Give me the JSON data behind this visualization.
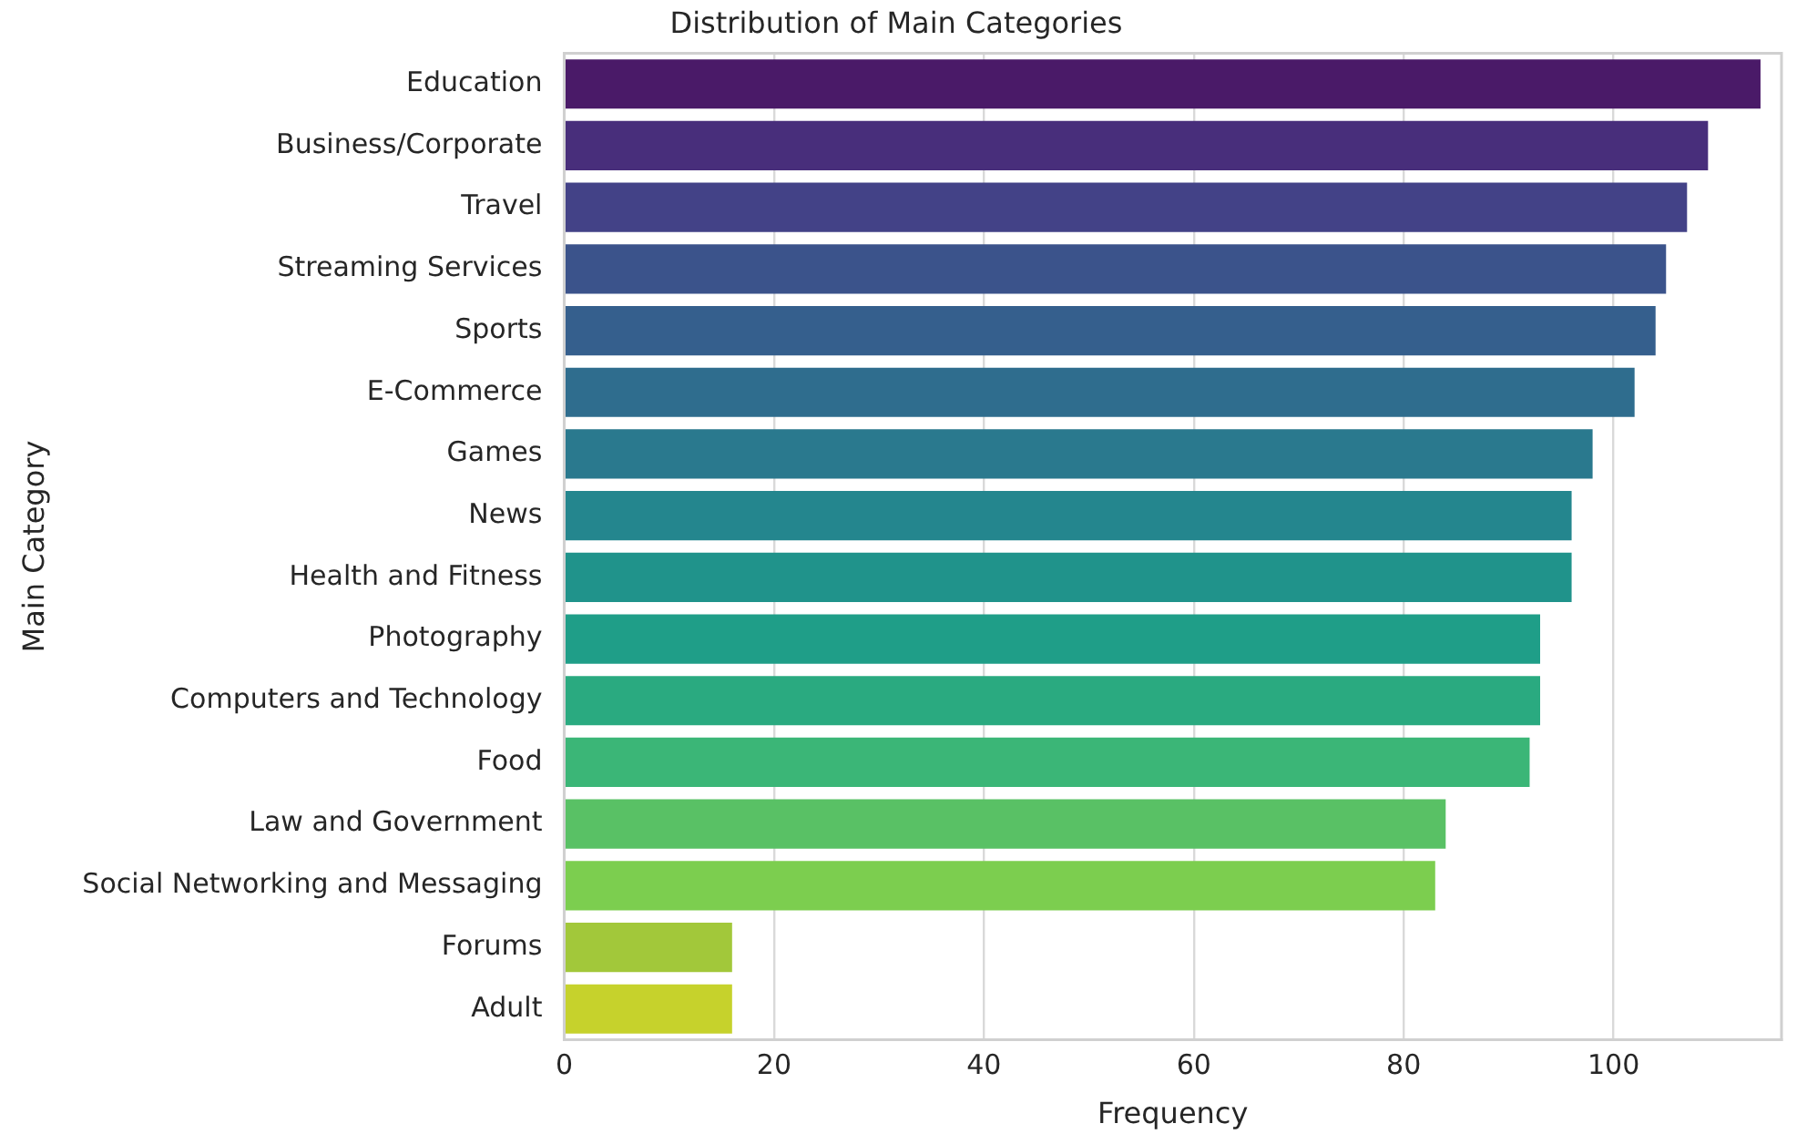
{
  "chart_data": {
    "type": "bar",
    "orientation": "horizontal",
    "title": "Distribution of Main Categories",
    "xlabel": "Frequency",
    "ylabel": "Main Category",
    "categories": [
      "Education",
      "Business/Corporate",
      "Travel",
      "Streaming Services",
      "Sports",
      "E-Commerce",
      "Games",
      "News",
      "Health and Fitness",
      "Photography",
      "Computers and Technology",
      "Food",
      "Law and Government",
      "Social Networking and Messaging",
      "Forums",
      "Adult"
    ],
    "values": [
      114,
      109,
      107,
      105,
      104,
      102,
      98,
      96,
      96,
      93,
      93,
      92,
      84,
      83,
      16,
      16
    ],
    "colors": [
      "#4a1a68",
      "#482e7b",
      "#434287",
      "#3b538b",
      "#355f8d",
      "#2f6d8e",
      "#2a798e",
      "#24868e",
      "#20938b",
      "#1f9e88",
      "#2aaa80",
      "#3bb677",
      "#59c165",
      "#7cce4f",
      "#a2c83a",
      "#c6d22c"
    ],
    "xlim": [
      0,
      116
    ],
    "xticks": [
      0,
      20,
      40,
      60,
      80,
      100
    ],
    "grid": "x"
  }
}
